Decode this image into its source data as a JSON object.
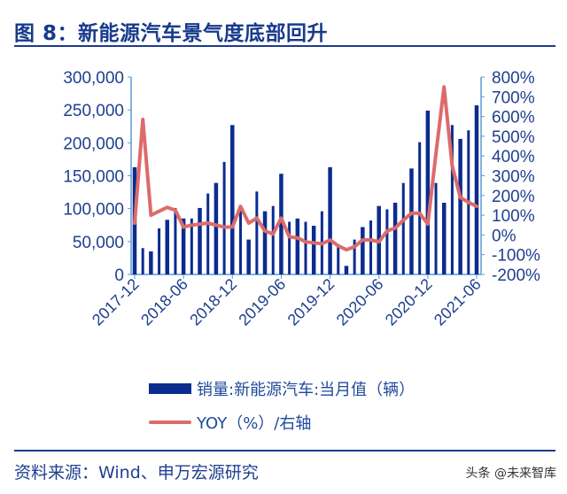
{
  "title": "图 8：新能源汽车景气度底部回升",
  "source": "资料来源：Wind、申万宏源研究",
  "watermark": "头条 @未来智库",
  "colors": {
    "bars": "#0b2c8f",
    "line": "#dd6b6b",
    "text": "#1f3f8f",
    "axis": "#5b9bd5"
  },
  "chart_data": {
    "type": "bar+line",
    "legend": [
      "销量:新能源汽车:当月值（辆）",
      "YOY（%）/右轴"
    ],
    "legend_position": "bottom",
    "grid": false,
    "x": [
      "2017-12",
      "2018-01",
      "2018-02",
      "2018-03",
      "2018-04",
      "2018-05",
      "2018-06",
      "2018-07",
      "2018-08",
      "2018-09",
      "2018-10",
      "2018-11",
      "2018-12",
      "2019-01",
      "2019-02",
      "2019-03",
      "2019-04",
      "2019-05",
      "2019-06",
      "2019-07",
      "2019-08",
      "2019-09",
      "2019-10",
      "2019-11",
      "2019-12",
      "2020-01",
      "2020-02",
      "2020-03",
      "2020-04",
      "2020-05",
      "2020-06",
      "2020-07",
      "2020-08",
      "2020-09",
      "2020-10",
      "2020-11",
      "2020-12",
      "2021-01",
      "2021-02",
      "2021-03",
      "2021-04",
      "2021-05",
      "2021-06"
    ],
    "x_tick_labels": [
      "2017-12",
      "2018-06",
      "2018-12",
      "2019-06",
      "2019-12",
      "2020-06",
      "2020-12",
      "2021-06"
    ],
    "left_axis": {
      "ylim": [
        0,
        300000
      ],
      "ticks": [
        "0",
        "50,000",
        "100,000",
        "150,000",
        "200,000",
        "250,000",
        "300,000"
      ]
    },
    "right_axis": {
      "ylim": [
        -200,
        800
      ],
      "ticks": [
        "-200%",
        "-100%",
        "0%",
        "100%",
        "200%",
        "300%",
        "400%",
        "500%",
        "600%",
        "700%",
        "800%"
      ]
    },
    "series": [
      {
        "name": "销量:新能源汽车:当月值（辆）",
        "type": "bar",
        "axis": "left",
        "values": [
          163000,
          40000,
          35000,
          70000,
          83000,
          101000,
          85000,
          85000,
          101000,
          123000,
          139000,
          171000,
          227000,
          97000,
          53000,
          126000,
          96000,
          104000,
          153000,
          80000,
          85000,
          80000,
          74000,
          96000,
          163000,
          43000,
          13000,
          53000,
          72000,
          82000,
          104000,
          99000,
          109000,
          139000,
          161000,
          201000,
          249000,
          139000,
          109000,
          227000,
          206000,
          219000,
          257000
        ]
      },
      {
        "name": "YOY（%）/右轴",
        "type": "line",
        "axis": "right",
        "values": [
          60,
          585,
          100,
          120,
          140,
          125,
          40,
          50,
          55,
          60,
          50,
          40,
          40,
          145,
          60,
          85,
          20,
          5,
          85,
          -10,
          -15,
          -35,
          -40,
          -45,
          -25,
          -55,
          -75,
          -60,
          -25,
          -25,
          -35,
          20,
          35,
          75,
          110,
          110,
          55,
          410,
          750,
          350,
          190,
          165,
          145
        ]
      }
    ]
  }
}
